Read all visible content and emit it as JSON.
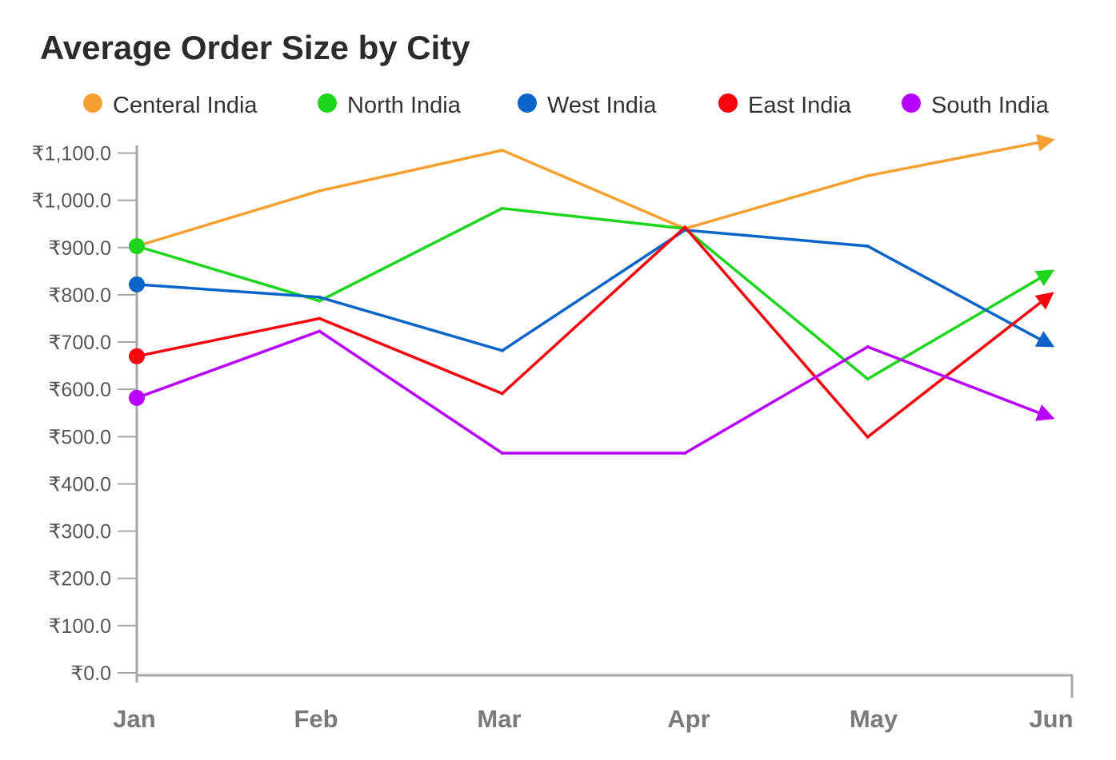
{
  "chart_data": {
    "type": "line",
    "title": "Average Order Size by City",
    "xlabel": "",
    "ylabel": "",
    "categories": [
      "Jan",
      "Feb",
      "Mar",
      "Apr",
      "May",
      "Jun"
    ],
    "ylim": [
      0,
      1100
    ],
    "yticks": [
      0,
      100,
      200,
      300,
      400,
      500,
      600,
      700,
      800,
      900,
      1000,
      1100
    ],
    "ytick_labels": [
      "₹0.0",
      "₹100.0",
      "₹200.0",
      "₹300.0",
      "₹400.0",
      "₹500.0",
      "₹600.0",
      "₹700.0",
      "₹800.0",
      "₹900.0",
      "₹1,000.0",
      "₹1,100.0"
    ],
    "grid": false,
    "legend_position": "top",
    "series": [
      {
        "name": "Centeral India",
        "color": "#F5A030",
        "values": [
          903,
          1020,
          1106,
          940,
          1052,
          1127
        ]
      },
      {
        "name": "North India",
        "color": "#1DD51D",
        "values": [
          903,
          787,
          983,
          940,
          622,
          848
        ]
      },
      {
        "name": "West India",
        "color": "#0B65C8",
        "values": [
          822,
          795,
          682,
          937,
          903,
          694
        ]
      },
      {
        "name": "East India",
        "color": "#F5050D",
        "values": [
          670,
          750,
          591,
          943,
          499,
          800
        ]
      },
      {
        "name": "South India",
        "color": "#B800FF",
        "values": [
          582,
          723,
          465,
          465,
          690,
          541
        ]
      }
    ]
  }
}
